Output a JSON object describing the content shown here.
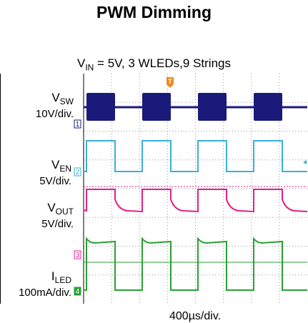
{
  "title": "PWM Dimming",
  "subtitle": {
    "prefix": "V",
    "sub": "IN",
    "suffix": " = 5V, 3 WLEDs,9 Strings"
  },
  "channel_labels": [
    {
      "name": "V",
      "sub": "SW",
      "scale": "10V/div.",
      "marker": "1"
    },
    {
      "name": "V",
      "sub": "EN",
      "scale": "5V/div.",
      "marker": "2"
    },
    {
      "name": "V",
      "sub": "OUT",
      "scale": "5V/div.",
      "marker": "3"
    },
    {
      "name": "I",
      "sub": "LED",
      "scale": "100mA/div.",
      "marker": "4"
    }
  ],
  "trigger_marker": "T",
  "chart_data": {
    "type": "line",
    "xlabel": "400µs/div.",
    "pwm_cycles": 4,
    "series": [
      {
        "name": "VSW",
        "color": "#1a1a7a"
      },
      {
        "name": "VEN",
        "color": "#3ab0d8"
      },
      {
        "name": "VOUT",
        "color": "#e0208a"
      },
      {
        "name": "ILED",
        "color": "#2aa033"
      }
    ],
    "grid": true,
    "trigger_color": "#f08a1c"
  }
}
